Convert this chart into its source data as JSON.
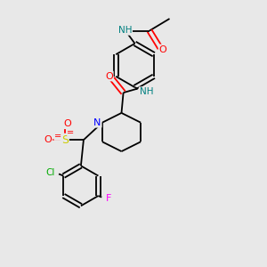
{
  "background_color": "#e8e8e8",
  "atom_colors": {
    "C": "#000000",
    "N": "#0000ff",
    "O": "#ff0000",
    "S": "#cccc00",
    "Cl": "#00aa00",
    "F": "#ff00ff",
    "H": "#008080"
  },
  "bond_color": "#000000",
  "figsize": [
    3.0,
    3.0
  ],
  "dpi": 100
}
